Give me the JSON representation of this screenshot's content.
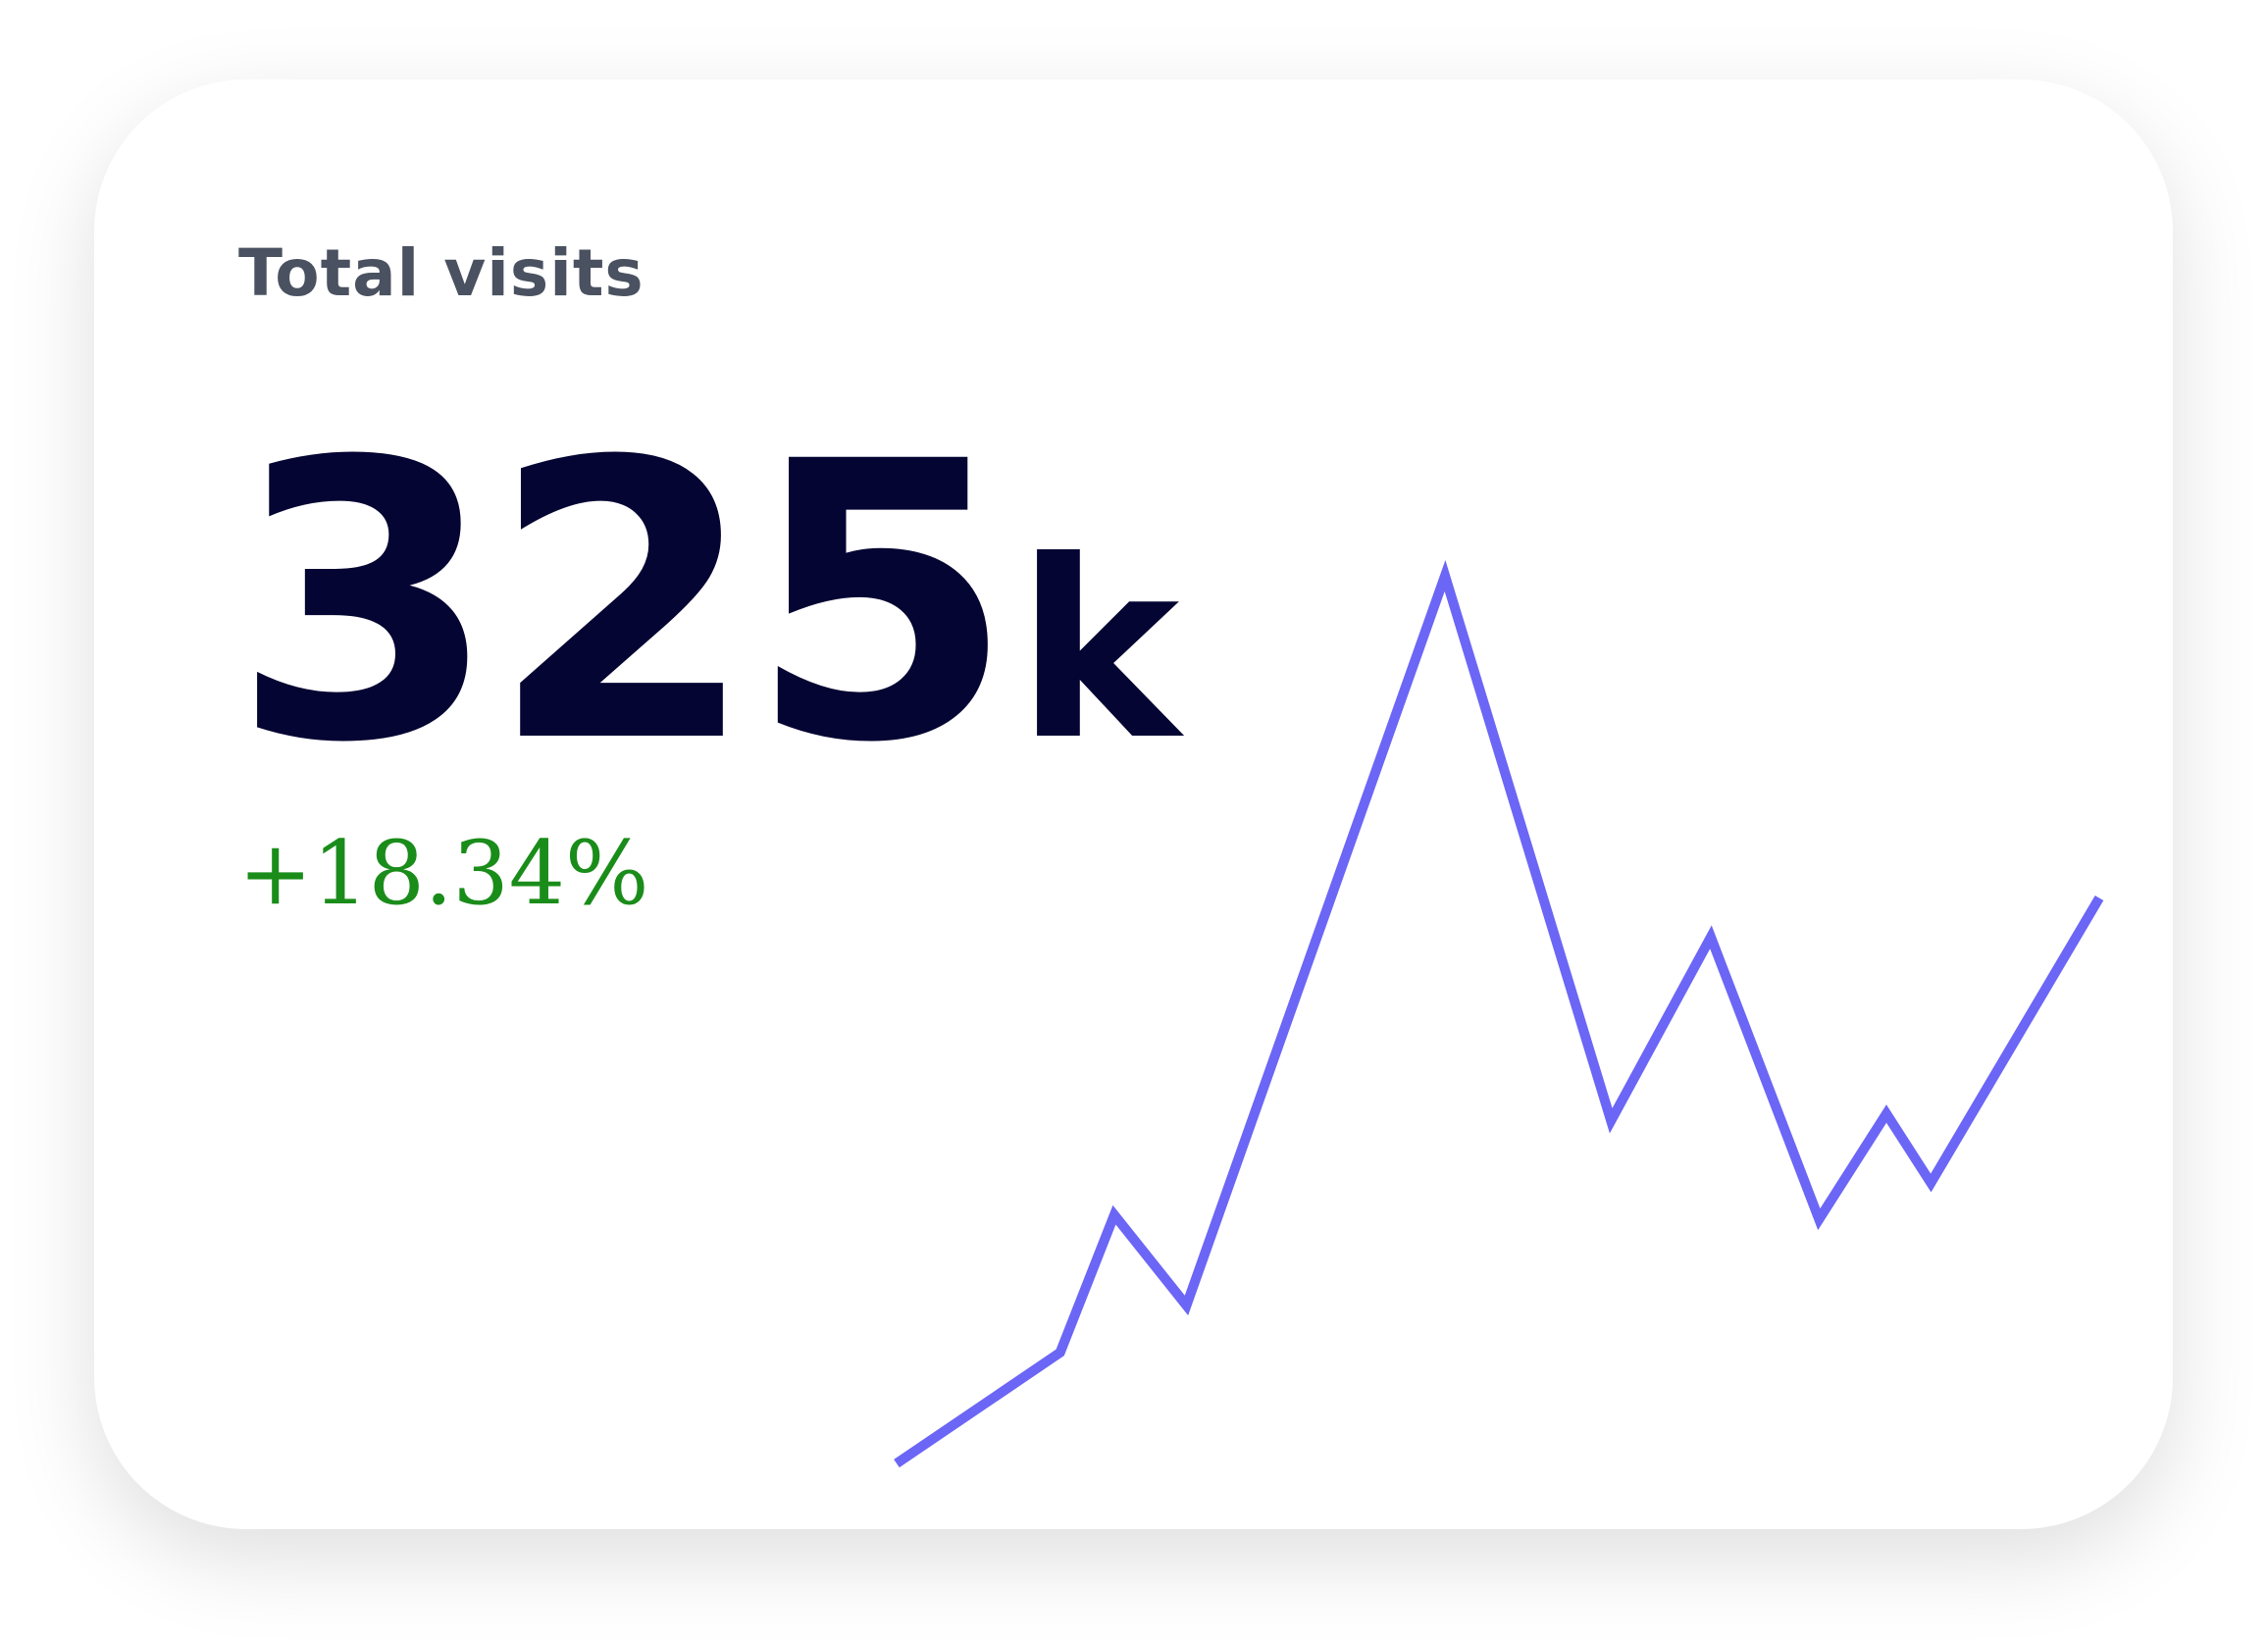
{
  "card": {
    "title": "Total visits",
    "value": "325",
    "unit": "k",
    "change": "+18.34%",
    "sparkline": {
      "type": "line",
      "color": "#6b66f5",
      "x": [
        0,
        13.6,
        18.1,
        24.1,
        45.6,
        59.4,
        67.7,
        76.7,
        82.3,
        86.0,
        100
      ],
      "values": [
        0,
        12.5,
        28.0,
        17.8,
        100,
        38.6,
        59.3,
        27.5,
        39.4,
        31.6,
        63.7
      ]
    }
  }
}
